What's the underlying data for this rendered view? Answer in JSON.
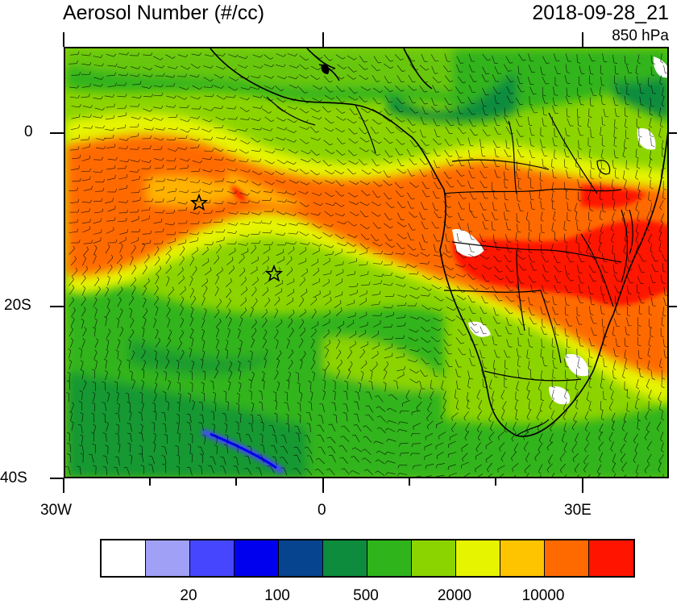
{
  "header": {
    "title": "Aerosol Number (#/cc)",
    "datetime": "2018-09-28_21",
    "level": "850 hPa"
  },
  "axes": {
    "x_ticks": [
      "30W",
      "0",
      "30E"
    ],
    "y_ticks": [
      "0",
      "20S",
      "40S"
    ]
  },
  "markers": [
    {
      "name": "star",
      "lon": -14.5,
      "lat": -8
    },
    {
      "name": "star",
      "lon": -5.7,
      "lat": -16
    }
  ],
  "colorbar": {
    "colors": [
      "#ffffff",
      "#a0a0f6",
      "#4646ff",
      "#0000ee",
      "#064490",
      "#0c8c3c",
      "#30b41c",
      "#8cd400",
      "#e6f400",
      "#ffc400",
      "#ff6a00",
      "#ff1400"
    ],
    "labels": [
      "20",
      "100",
      "500",
      "2000",
      "10000"
    ]
  },
  "colors": {
    "ocean_base": "#8fd300",
    "plume": "#ff6a00",
    "plume_core": "#ff1400",
    "plume_edge": "#ffc400",
    "clean": "#30b41c",
    "clean_dark": "#0c8c3c"
  }
}
